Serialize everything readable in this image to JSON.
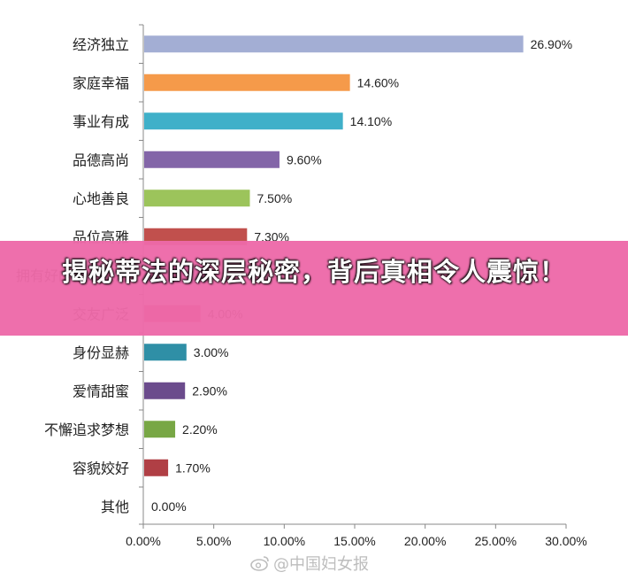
{
  "banner": {
    "text": "揭秘蒂法的深层秘密，背后真相令人震惊！"
  },
  "watermark": {
    "icon": "weibo-icon",
    "text": "@中国妇女报"
  },
  "chart_data": {
    "type": "bar",
    "orientation": "horizontal",
    "categories": [
      "经济独立",
      "家庭幸福",
      "事业有成",
      "品德高尚",
      "心地善良",
      "品位高雅",
      "拥有好的生活状态",
      "交友广泛",
      "身份显赫",
      "爱情甜蜜",
      "不懈追求梦想",
      "容貌姣好",
      "其他"
    ],
    "values": [
      26.9,
      14.6,
      14.1,
      9.6,
      7.5,
      7.3,
      4.4,
      4.0,
      3.0,
      2.9,
      2.2,
      1.7,
      0.0
    ],
    "value_labels": [
      "26.90%",
      "14.60%",
      "14.10%",
      "9.60%",
      "7.50%",
      "7.30%",
      "",
      "4.00%",
      "3.00%",
      "2.90%",
      "2.20%",
      "1.70%",
      "0.00%"
    ],
    "colors": [
      "#a3aed4",
      "#f59a4a",
      "#3fb0c9",
      "#8365a8",
      "#9cc45b",
      "#c1504d",
      "#6d8ec4",
      "#e03d6a",
      "#2f8fa6",
      "#6b4b8c",
      "#78a745",
      "#b03f45",
      "#cccccc"
    ],
    "xticks": [
      "0.00%",
      "5.00%",
      "10.00%",
      "15.00%",
      "20.00%",
      "25.00%",
      "30.00%"
    ],
    "xlim": [
      0,
      30
    ],
    "grid": false,
    "legend": "none"
  }
}
